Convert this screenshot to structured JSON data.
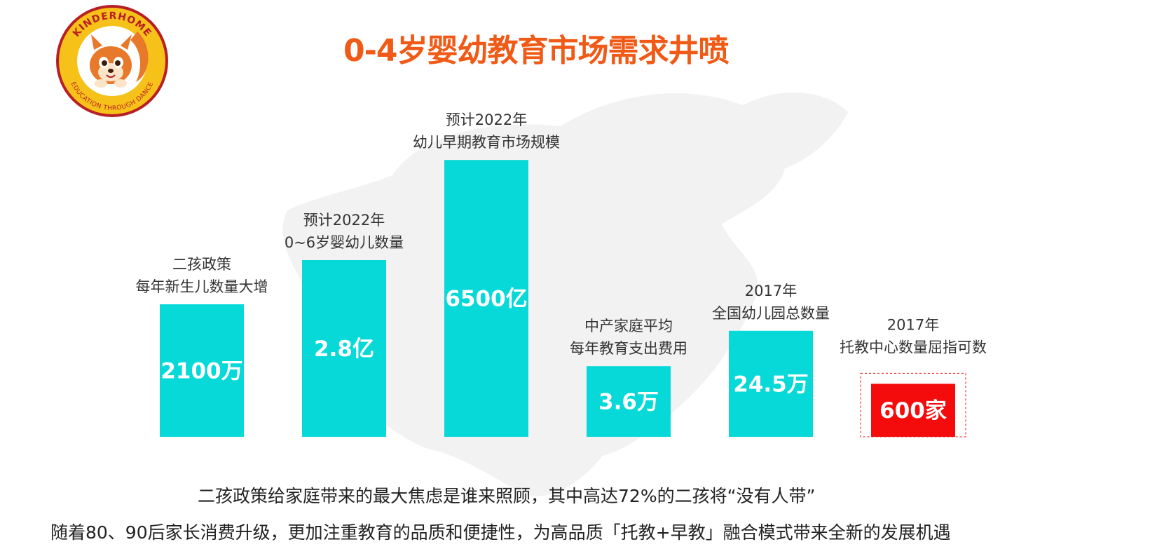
{
  "slide": {
    "title": "0-4岁婴幼教育市场需求井喷",
    "title_color": "#F05A16",
    "logo": {
      "top_text": "KINDERHOME",
      "bottom_text": "EDUCATION THROUGH DANCE",
      "ring_color": "#F6C21A",
      "text_color": "#B81F25"
    },
    "footnotes": [
      "二孩政策给家庭带来的最大焦虑是谁来照顾，其中高达72%的二孩将“没有人带”",
      "随着80、90后家长消费升级，更加注重教育的品质和便捷性，为高品质「托教+早教」融合模式带来全新的发展机遇"
    ]
  },
  "chart_data": {
    "type": "bar",
    "bar_color": "#07D8D8",
    "highlight_color": "#F40B0B",
    "bars": [
      {
        "value_label": "2100万",
        "caption": [
          "二孩政策",
          "每年新生儿数量大增"
        ],
        "level": 0.45,
        "highlight": false
      },
      {
        "value_label": "2.8亿",
        "caption": [
          "预计2022年",
          "0~6岁婴幼儿数量"
        ],
        "level": 0.6,
        "highlight": false
      },
      {
        "value_label": "6500亿",
        "caption": [
          "预计2022年",
          "幼儿早期教育市场规模"
        ],
        "level": 0.94,
        "highlight": false
      },
      {
        "value_label": "3.6万",
        "caption": [
          "中产家庭平均",
          "每年教育支出费用"
        ],
        "level": 0.24,
        "highlight": false
      },
      {
        "value_label": "24.5万",
        "caption": [
          "2017年",
          "全国幼儿园总数量"
        ],
        "level": 0.36,
        "highlight": false
      },
      {
        "value_label": "600家",
        "caption": [
          "2017年",
          "托教中心数量屈指可数"
        ],
        "level": 0.18,
        "highlight": true
      }
    ]
  }
}
